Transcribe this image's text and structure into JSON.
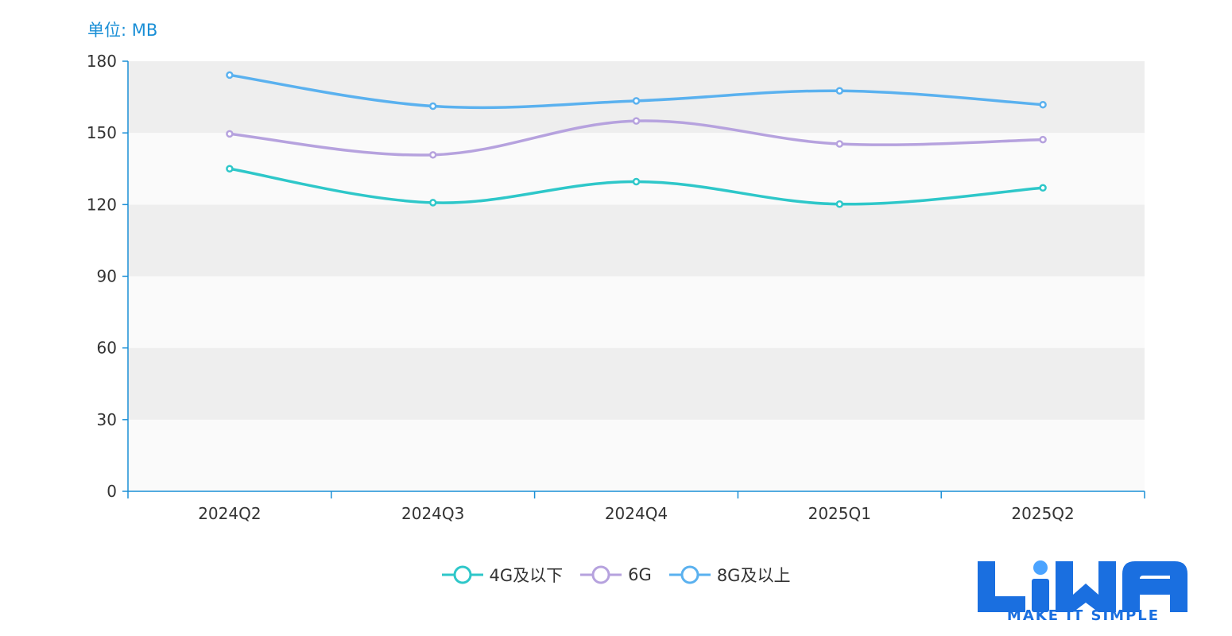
{
  "unit_label": "单位: MB",
  "colors": {
    "band_dark": "#eeeeee",
    "band_light": "#fafafa",
    "axis": "#1a8fd6",
    "tick_text": "#333333",
    "brand": "#1a6fe0"
  },
  "chart_data": {
    "type": "line",
    "smooth": true,
    "categories": [
      "2024Q2",
      "2024Q3",
      "2024Q4",
      "2025Q1",
      "2025Q2"
    ],
    "ylim": [
      0,
      180
    ],
    "yticks": [
      0,
      30,
      60,
      90,
      120,
      150,
      180
    ],
    "ylabel": "单位: MB",
    "grid": "alternating horizontal bands",
    "legend_position": "bottom-center",
    "series": [
      {
        "name": "4G及以下",
        "color": "#2ec7c9",
        "values": [
          135,
          120.8,
          129.6,
          120.2,
          127
        ]
      },
      {
        "name": "6G",
        "color": "#b6a2de",
        "values": [
          149.6,
          140.8,
          155,
          145.4,
          147.2
        ]
      },
      {
        "name": "8G及以上",
        "color": "#5ab1ef",
        "values": [
          174.2,
          161.2,
          163.4,
          167.6,
          161.8
        ]
      }
    ]
  },
  "logo": {
    "text": "LiWA",
    "tagline": "MAKE IT SIMPLE"
  }
}
